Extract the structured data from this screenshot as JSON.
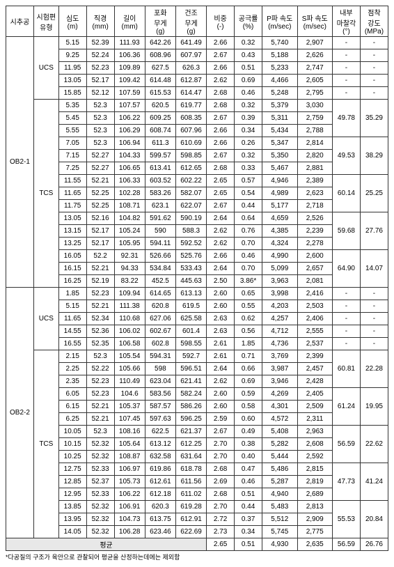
{
  "headers": [
    "시추공",
    "시험편\n유형",
    "심도\n(m)",
    "직경\n(mm)",
    "길이\n(mm)",
    "포화\n무게\n(g)",
    "건조\n무게\n(g)",
    "비중\n(-)",
    "공극률\n(%)",
    "P파 속도\n(m/sec)",
    "S파 속도\n(m/sec)",
    "내부\n마찰각\n(°)",
    "점착\n강도\n(MPa)"
  ],
  "boreholes": [
    {
      "name": "OB2-1",
      "groups": [
        {
          "type": "UCS",
          "rows": [
            [
              "5.15",
              "52.39",
              "111.93",
              "642.26",
              "641.49",
              "2.66",
              "0.32",
              "5,740",
              "2,907",
              "-",
              "-"
            ],
            [
              "9.25",
              "52.24",
              "106.36",
              "608.96",
              "607.97",
              "2.67",
              "0.43",
              "5,188",
              "2,626",
              "-",
              "-"
            ],
            [
              "11.95",
              "52.23",
              "109.89",
              "627.5",
              "626.3",
              "2.66",
              "0.51",
              "5,233",
              "2,747",
              "-",
              "-"
            ],
            [
              "13.05",
              "52.17",
              "109.42",
              "614.48",
              "612.87",
              "2.62",
              "0.69",
              "4,466",
              "2,605",
              "-",
              "-"
            ],
            [
              "15.85",
              "52.12",
              "107.59",
              "615.53",
              "614.47",
              "2.68",
              "0.46",
              "5,248",
              "2,795",
              "-",
              "-"
            ]
          ]
        },
        {
          "type": "TCS",
          "rows": [
            [
              "5.35",
              "52.3",
              "107.57",
              "620.5",
              "619.77",
              "2.68",
              "0.32",
              "5,379",
              "3,030",
              "",
              ""
            ],
            [
              "5.45",
              "52.3",
              "106.22",
              "609.25",
              "608.35",
              "2.67",
              "0.39",
              "5,311",
              "2,759",
              "49.78",
              "35.29"
            ],
            [
              "5.55",
              "52.3",
              "106.29",
              "608.74",
              "607.96",
              "2.66",
              "0.34",
              "5,434",
              "2,788",
              "",
              ""
            ],
            [
              "7.05",
              "52.3",
              "106.94",
              "611.3",
              "610.69",
              "2.66",
              "0.26",
              "5,347",
              "2,814",
              "",
              ""
            ],
            [
              "7.15",
              "52.27",
              "104.33",
              "599.57",
              "598.85",
              "2.67",
              "0.32",
              "5,350",
              "2,820",
              "49.53",
              "38.29"
            ],
            [
              "7.25",
              "52.27",
              "106.65",
              "613.41",
              "612.65",
              "2.68",
              "0.33",
              "5,467",
              "2,881",
              "",
              ""
            ],
            [
              "11.55",
              "52.21",
              "106.33",
              "603.52",
              "602.22",
              "2.65",
              "0.57",
              "4,946",
              "2,389",
              "",
              ""
            ],
            [
              "11.65",
              "52.25",
              "102.28",
              "583.26",
              "582.07",
              "2.65",
              "0.54",
              "4,989",
              "2,623",
              "60.14",
              "25.25"
            ],
            [
              "11.75",
              "52.25",
              "108.71",
              "623.1",
              "622.07",
              "2.67",
              "0.44",
              "5,177",
              "2,718",
              "",
              ""
            ],
            [
              "13.05",
              "52.16",
              "104.82",
              "591.62",
              "590.19",
              "2.64",
              "0.64",
              "4,659",
              "2,526",
              "",
              ""
            ],
            [
              "13.15",
              "52.17",
              "105.24",
              "590",
              "588.3",
              "2.62",
              "0.76",
              "4,385",
              "2,239",
              "59.68",
              "27.76"
            ],
            [
              "13.25",
              "52.17",
              "105.95",
              "594.11",
              "592.52",
              "2.62",
              "0.70",
              "4,324",
              "2,278",
              "",
              ""
            ],
            [
              "16.05",
              "52.2",
              "92.31",
              "526.66",
              "525.76",
              "2.66",
              "0.46",
              "4,990",
              "2,600",
              "",
              ""
            ],
            [
              "16.15",
              "52.21",
              "94.33",
              "534.84",
              "533.43",
              "2.64",
              "0.70",
              "5,099",
              "2,657",
              "64.90",
              "14.07"
            ],
            [
              "16.25",
              "52.19",
              "83.22",
              "452.5",
              "445.63",
              "2.50",
              "3.86*",
              "3,963",
              "2,081",
              "",
              ""
            ]
          ]
        }
      ]
    },
    {
      "name": "OB2-2",
      "groups": [
        {
          "type": "UCS",
          "rows": [
            [
              "1.85",
              "52.23",
              "109.94",
              "614.65",
              "613.13",
              "2.60",
              "0.65",
              "3,998",
              "2,416",
              "-",
              "-"
            ],
            [
              "5.15",
              "52.21",
              "111.38",
              "620.8",
              "619.5",
              "2.60",
              "0.55",
              "4,203",
              "2,503",
              "-",
              "-"
            ],
            [
              "11.65",
              "52.34",
              "110.68",
              "627.06",
              "625.58",
              "2.63",
              "0.62",
              "4,257",
              "2,406",
              "-",
              "-"
            ],
            [
              "14.55",
              "52.36",
              "106.02",
              "602.67",
              "601.4",
              "2.63",
              "0.56",
              "4,712",
              "2,555",
              "-",
              "-"
            ],
            [
              "16.55",
              "52.35",
              "106.58",
              "602.8",
              "598.55",
              "2.61",
              "1.85",
              "4,736",
              "2,537",
              "-",
              "-"
            ]
          ]
        },
        {
          "type": "TCS",
          "rows": [
            [
              "2.15",
              "52.3",
              "105.54",
              "594.31",
              "592.7",
              "2.61",
              "0.71",
              "3,769",
              "2,399",
              "",
              ""
            ],
            [
              "2.25",
              "52.22",
              "105.66",
              "598",
              "596.51",
              "2.64",
              "0.66",
              "3,987",
              "2,457",
              "60.81",
              "22.28"
            ],
            [
              "2.35",
              "52.23",
              "110.49",
              "623.04",
              "621.41",
              "2.62",
              "0.69",
              "3,946",
              "2,428",
              "",
              ""
            ],
            [
              "6.05",
              "52.23",
              "104.6",
              "583.56",
              "582.24",
              "2.60",
              "0.59",
              "4,269",
              "2,405",
              "",
              ""
            ],
            [
              "6.15",
              "52.21",
              "105.37",
              "587.57",
              "586.26",
              "2.60",
              "0.58",
              "4,301",
              "2,509",
              "61.24",
              "19.95"
            ],
            [
              "6.25",
              "52.21",
              "107.45",
              "597.63",
              "596.25",
              "2.59",
              "0.60",
              "4,572",
              "2,311",
              "",
              ""
            ],
            [
              "10.05",
              "52.3",
              "108.16",
              "622.5",
              "621.37",
              "2.67",
              "0.49",
              "5,408",
              "2,963",
              "",
              ""
            ],
            [
              "10.15",
              "52.32",
              "105.64",
              "613.12",
              "612.25",
              "2.70",
              "0.38",
              "5,282",
              "2,608",
              "56.59",
              "22.62"
            ],
            [
              "10.25",
              "52.32",
              "108.87",
              "632.58",
              "631.64",
              "2.70",
              "0.40",
              "5,444",
              "2,592",
              "",
              ""
            ],
            [
              "12.75",
              "52.33",
              "106.97",
              "619.86",
              "618.78",
              "2.68",
              "0.47",
              "5,486",
              "2,815",
              "",
              ""
            ],
            [
              "12.85",
              "52.37",
              "105.73",
              "612.61",
              "611.56",
              "2.69",
              "0.46",
              "5,287",
              "2,819",
              "47.73",
              "41.24"
            ],
            [
              "12.95",
              "52.33",
              "106.22",
              "612.18",
              "611.02",
              "2.68",
              "0.51",
              "4,940",
              "2,689",
              "",
              ""
            ],
            [
              "13.85",
              "52.32",
              "106.91",
              "620.3",
              "619.28",
              "2.70",
              "0.44",
              "5,483",
              "2,813",
              "",
              ""
            ],
            [
              "13.95",
              "52.32",
              "104.73",
              "613.75",
              "612.91",
              "2.72",
              "0.37",
              "5,512",
              "2,909",
              "55.53",
              "20.84"
            ],
            [
              "14.05",
              "52.32",
              "106.28",
              "623.46",
              "622.69",
              "2.73",
              "0.34",
              "5,745",
              "2,775",
              "",
              ""
            ]
          ]
        }
      ]
    }
  ],
  "avg_label": "평균",
  "avg_values": [
    "2.65",
    "0.51",
    "4,930",
    "2,635",
    "56.59",
    "26.76"
  ],
  "footnote": "*다공질의 구조가 육안으로 관찰되어 평균을 산정하는데에는 제외함"
}
